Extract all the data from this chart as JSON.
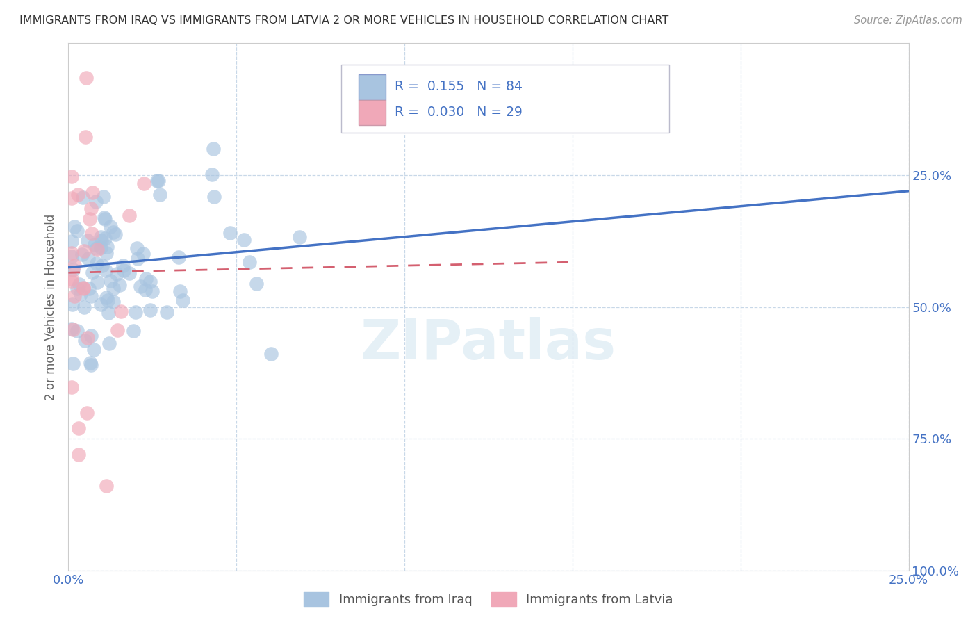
{
  "title": "IMMIGRANTS FROM IRAQ VS IMMIGRANTS FROM LATVIA 2 OR MORE VEHICLES IN HOUSEHOLD CORRELATION CHART",
  "source": "Source: ZipAtlas.com",
  "ylabel": "2 or more Vehicles in Household",
  "xlim": [
    0.0,
    0.25
  ],
  "ylim": [
    0.0,
    1.0
  ],
  "xtick_positions": [
    0.0,
    0.05,
    0.1,
    0.15,
    0.2,
    0.25
  ],
  "ytick_positions": [
    0.0,
    0.25,
    0.5,
    0.75,
    1.0
  ],
  "xtick_labels": [
    "0.0%",
    "",
    "",
    "",
    "",
    "25.0%"
  ],
  "ytick_labels_right": [
    "100.0%",
    "75.0%",
    "50.0%",
    "25.0%",
    ""
  ],
  "series1_name": "Immigrants from Iraq",
  "series2_name": "Immigrants from Latvia",
  "series1_color": "#a8c4e0",
  "series2_color": "#f0a8b8",
  "series1_line_color": "#4472c4",
  "series2_line_color": "#d46070",
  "series1_R": 0.155,
  "series1_N": 84,
  "series2_R": 0.03,
  "series2_N": 29,
  "legend_color": "#4472c4",
  "background_color": "#ffffff",
  "grid_color": "#c8d8e8",
  "blue_line_y0": 0.575,
  "blue_line_y1": 0.72,
  "pink_line_y0": 0.565,
  "pink_line_y1": 0.585
}
